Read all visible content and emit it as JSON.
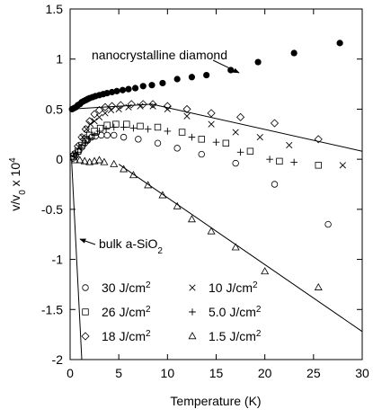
{
  "chart_data": {
    "type": "scatter",
    "title": "",
    "xlabel": "Temperature (K)",
    "ylabel": {
      "main": "v/v",
      "sub": "0",
      "mid": " x 10",
      "sup": "4"
    },
    "xlim": [
      0,
      30
    ],
    "ylim": [
      -2,
      1.5
    ],
    "xticks": [
      0,
      5,
      10,
      15,
      20,
      25,
      30
    ],
    "yticks": [
      -2,
      -1.5,
      -1,
      -0.5,
      0,
      0.5,
      1,
      1.5
    ],
    "ytick_labels": [
      "-2",
      "-1.5",
      "-1",
      "-0.5",
      "0",
      "0.5",
      "1",
      "1.5"
    ],
    "grid": false,
    "legend_position": "bottom-left",
    "series": [
      {
        "name": "nanocrystalline diamond",
        "marker": "filled-circle",
        "in_legend": false,
        "points": [
          [
            0.2,
            0.5
          ],
          [
            0.4,
            0.51
          ],
          [
            0.6,
            0.52
          ],
          [
            0.8,
            0.54
          ],
          [
            1.0,
            0.55
          ],
          [
            1.2,
            0.57
          ],
          [
            1.4,
            0.58
          ],
          [
            1.6,
            0.59
          ],
          [
            1.8,
            0.6
          ],
          [
            2.0,
            0.61
          ],
          [
            2.3,
            0.62
          ],
          [
            2.6,
            0.63
          ],
          [
            3.0,
            0.64
          ],
          [
            3.4,
            0.65
          ],
          [
            3.8,
            0.66
          ],
          [
            4.3,
            0.67
          ],
          [
            4.8,
            0.68
          ],
          [
            5.4,
            0.69
          ],
          [
            6.0,
            0.7
          ],
          [
            6.7,
            0.71
          ],
          [
            7.5,
            0.73
          ],
          [
            8.4,
            0.74
          ],
          [
            9.5,
            0.76
          ],
          [
            11.0,
            0.8
          ],
          [
            12.5,
            0.82
          ],
          [
            14.0,
            0.84
          ],
          [
            16.5,
            0.89
          ],
          [
            19.3,
            0.97
          ],
          [
            23.0,
            1.06
          ],
          [
            27.7,
            1.16
          ]
        ]
      },
      {
        "name": "30 J/cm",
        "sup": "2",
        "marker": "open-circle",
        "in_legend": true,
        "points": [
          [
            0.3,
            0.01
          ],
          [
            0.6,
            0.04
          ],
          [
            0.9,
            0.08
          ],
          [
            1.2,
            0.12
          ],
          [
            1.5,
            0.16
          ],
          [
            1.8,
            0.19
          ],
          [
            2.2,
            0.22
          ],
          [
            2.6,
            0.23
          ],
          [
            3.2,
            0.24
          ],
          [
            3.8,
            0.24
          ],
          [
            4.5,
            0.24
          ],
          [
            5.5,
            0.22
          ],
          [
            7.0,
            0.2
          ],
          [
            9.0,
            0.16
          ],
          [
            11.0,
            0.11
          ],
          [
            13.5,
            0.05
          ],
          [
            17.0,
            -0.04
          ],
          [
            21.0,
            -0.25
          ],
          [
            26.5,
            -0.65
          ]
        ]
      },
      {
        "name": "10 J/cm",
        "sup": "2",
        "marker": "x",
        "in_legend": true,
        "points": [
          [
            0.5,
            0.05
          ],
          [
            0.9,
            0.12
          ],
          [
            1.3,
            0.22
          ],
          [
            1.7,
            0.3
          ],
          [
            2.1,
            0.35
          ],
          [
            2.5,
            0.38
          ],
          [
            3.0,
            0.42
          ],
          [
            3.6,
            0.46
          ],
          [
            4.2,
            0.49
          ],
          [
            5.0,
            0.5
          ],
          [
            6.0,
            0.52
          ],
          [
            7.2,
            0.53
          ],
          [
            8.5,
            0.53
          ],
          [
            10.0,
            0.5
          ],
          [
            12.0,
            0.43
          ],
          [
            14.5,
            0.35
          ],
          [
            17.0,
            0.27
          ],
          [
            19.5,
            0.22
          ],
          [
            22.5,
            0.14
          ],
          [
            28.0,
            -0.06
          ]
        ]
      },
      {
        "name": "26 J/cm",
        "sup": "2",
        "marker": "square",
        "in_legend": true,
        "points": [
          [
            0.4,
            0.03
          ],
          [
            0.8,
            0.08
          ],
          [
            1.2,
            0.14
          ],
          [
            1.6,
            0.2
          ],
          [
            2.0,
            0.24
          ],
          [
            2.5,
            0.28
          ],
          [
            3.1,
            0.31
          ],
          [
            3.8,
            0.34
          ],
          [
            4.7,
            0.35
          ],
          [
            5.8,
            0.35
          ],
          [
            7.2,
            0.33
          ],
          [
            9.0,
            0.32
          ],
          [
            11.5,
            0.27
          ],
          [
            13.5,
            0.2
          ],
          [
            16.0,
            0.16
          ],
          [
            18.5,
            0.08
          ],
          [
            21.5,
            -0.02
          ],
          [
            25.5,
            -0.06
          ]
        ]
      },
      {
        "name": "5.0 J/cm",
        "sup": "2",
        "marker": "plus",
        "in_legend": true,
        "points": [
          [
            0.4,
            0.03
          ],
          [
            0.8,
            0.07
          ],
          [
            1.2,
            0.11
          ],
          [
            1.6,
            0.16
          ],
          [
            2.0,
            0.2
          ],
          [
            2.5,
            0.24
          ],
          [
            3.0,
            0.28
          ],
          [
            3.7,
            0.3
          ],
          [
            4.5,
            0.32
          ],
          [
            5.5,
            0.32
          ],
          [
            6.5,
            0.31
          ],
          [
            8.0,
            0.3
          ],
          [
            10.0,
            0.28
          ],
          [
            12.5,
            0.22
          ],
          [
            15.0,
            0.17
          ],
          [
            17.5,
            0.07
          ],
          [
            20.5,
            0.0
          ],
          [
            23.0,
            -0.03
          ]
        ]
      },
      {
        "name": "18 J/cm",
        "sup": "2",
        "marker": "diamond",
        "in_legend": true,
        "points": [
          [
            0.4,
            0.05
          ],
          [
            0.8,
            0.13
          ],
          [
            1.2,
            0.22
          ],
          [
            1.6,
            0.3
          ],
          [
            2.0,
            0.38
          ],
          [
            2.5,
            0.45
          ],
          [
            3.0,
            0.49
          ],
          [
            3.6,
            0.52
          ],
          [
            4.3,
            0.53
          ],
          [
            5.2,
            0.54
          ],
          [
            6.3,
            0.55
          ],
          [
            7.5,
            0.55
          ],
          [
            8.5,
            0.55
          ],
          [
            10.0,
            0.53
          ],
          [
            12.0,
            0.5
          ],
          [
            14.5,
            0.46
          ],
          [
            17.5,
            0.42
          ],
          [
            21.0,
            0.36
          ],
          [
            25.5,
            0.2
          ]
        ]
      },
      {
        "name": "1.5 J/cm",
        "sup": "2",
        "marker": "triangle",
        "in_legend": true,
        "points": [
          [
            0.5,
            -0.01
          ],
          [
            1.0,
            -0.01
          ],
          [
            1.5,
            -0.02
          ],
          [
            2.0,
            -0.03
          ],
          [
            2.5,
            -0.02
          ],
          [
            3.0,
            -0.01
          ],
          [
            3.5,
            -0.03
          ],
          [
            4.5,
            -0.05
          ],
          [
            5.5,
            -0.1
          ],
          [
            6.5,
            -0.16
          ],
          [
            8.0,
            -0.26
          ],
          [
            9.5,
            -0.36
          ],
          [
            11.0,
            -0.47
          ],
          [
            12.5,
            -0.6
          ],
          [
            14.5,
            -0.72
          ],
          [
            17.0,
            -0.88
          ],
          [
            20.0,
            -1.12
          ],
          [
            25.5,
            -1.28
          ]
        ]
      }
    ],
    "fit_lines": [
      {
        "name": "nanocrystalline diamond fit",
        "points": [
          [
            0.0,
            0.5
          ],
          [
            8.4,
            0.55
          ],
          [
            30.0,
            0.08
          ]
        ]
      },
      {
        "name": "1.5 J/cm2 fit",
        "points": [
          [
            5.0,
            -0.05
          ],
          [
            30.0,
            -1.72
          ]
        ]
      },
      {
        "name": "bulk a-SiO2 line",
        "points": [
          [
            0.15,
            0.0
          ],
          [
            1.2,
            -2.0
          ]
        ]
      }
    ],
    "annotations": [
      {
        "name": "nanocrystalline-diamond-label",
        "text": "nanocrystalline diamond"
      },
      {
        "name": "bulk-sio2-label",
        "text": "bulk a-SiO",
        "sub": "2"
      }
    ]
  }
}
